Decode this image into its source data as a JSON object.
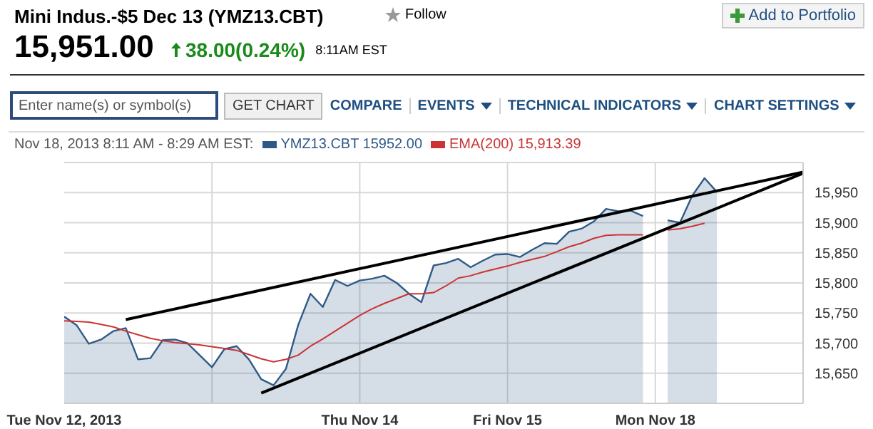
{
  "chart_data": {
    "type": "line",
    "title": "Mini Indus.-$5 Dec 13 (YMZ13.CBT)",
    "subtitle": "Nov 18, 2013 8:11 AM - 8:29 AM EST:",
    "annotations": [
      "15,951.00",
      "38.00(0.24%)",
      "8:11AM EST",
      "Follow",
      "Add to Portfolio",
      "Enter name(s) or symbol(s)",
      "GET CHART",
      "COMPARE",
      "EVENTS",
      "TECHNICAL INDICATORS",
      "CHART SETTINGS"
    ],
    "categories": [
      "Tue Nov 12, 2013",
      null,
      null,
      null,
      null,
      null,
      null,
      null,
      null,
      null,
      null,
      null,
      null,
      null,
      null,
      null,
      null,
      null,
      null,
      null,
      null,
      null,
      null,
      null,
      "Thu Nov 14",
      null,
      null,
      null,
      null,
      null,
      null,
      null,
      null,
      null,
      null,
      null,
      "Fri Nov 15",
      null,
      null,
      null,
      null,
      null,
      null,
      null,
      null,
      null,
      null,
      null,
      "Mon Nov 18",
      null,
      null,
      null,
      null,
      null,
      null,
      null,
      null,
      null,
      null,
      null,
      null
    ],
    "ylim": [
      15600,
      16000
    ],
    "yticks": [
      {
        "value": 15650,
        "label": "15,650"
      },
      {
        "value": 15700,
        "label": "15,700"
      },
      {
        "value": 15750,
        "label": "15,750"
      },
      {
        "value": 15800,
        "label": "15,800"
      },
      {
        "value": 15850,
        "label": "15,850"
      },
      {
        "value": 15900,
        "label": "15,900"
      },
      {
        "value": 15950,
        "label": "15,950"
      }
    ],
    "grid": true,
    "legend": "top left",
    "series": [
      {
        "name": "YMZ13.CBT 15952.00",
        "type": "area",
        "color": "#2f5a88",
        "values": [
          15744,
          15730,
          15699,
          15706,
          15720,
          15725,
          15673,
          15675,
          15705,
          15706,
          15700,
          15680,
          15660,
          15690,
          15695,
          15673,
          15640,
          15630,
          15657,
          15730,
          15782,
          15760,
          15805,
          15795,
          15804,
          15807,
          15812,
          15800,
          15782,
          15768,
          15829,
          15833,
          15840,
          15826,
          15837,
          15847,
          15848,
          15843,
          15855,
          15866,
          15865,
          15885,
          15890,
          15902,
          15923,
          15919,
          15920,
          15911,
          null,
          15904,
          15900,
          15945,
          15974,
          15951,
          null,
          null,
          null,
          null,
          null,
          null,
          null
        ]
      },
      {
        "name": "EMA(200) 15,913.39",
        "color": "#cc3333",
        "values": [
          15737,
          15736,
          15735,
          15731,
          15727,
          15720,
          15714,
          15708,
          15704,
          15701,
          15699,
          15697,
          15694,
          15691,
          15688,
          15681,
          15674,
          15669,
          15673,
          15680,
          15695,
          15707,
          15720,
          15733,
          15746,
          15757,
          15766,
          15774,
          15782,
          15782,
          15784,
          15795,
          15808,
          15812,
          15818,
          15823,
          15828,
          15834,
          15839,
          15844,
          15852,
          15860,
          15866,
          15874,
          15879,
          15880,
          15880,
          15880,
          null,
          15888,
          15890,
          15894,
          15899,
          null,
          null,
          null,
          null,
          null,
          null,
          null,
          null
        ]
      },
      {
        "color": "#000000",
        "values": [
          null,
          null,
          null,
          null,
          null,
          15739,
          null,
          null,
          null,
          null,
          null,
          null,
          null,
          null,
          null,
          null,
          null,
          null,
          null,
          null,
          null,
          null,
          null,
          null,
          null,
          null,
          null,
          null,
          null,
          null,
          null,
          null,
          null,
          null,
          null,
          null,
          null,
          null,
          null,
          null,
          null,
          null,
          null,
          null,
          null,
          null,
          null,
          null,
          null,
          null,
          null,
          null,
          null,
          null,
          null,
          null,
          null,
          null,
          null,
          null,
          15984
        ]
      },
      {
        "color": "#000000",
        "values": [
          null,
          null,
          null,
          null,
          null,
          null,
          null,
          null,
          null,
          null,
          null,
          null,
          null,
          null,
          null,
          null,
          15617,
          null,
          null,
          null,
          null,
          null,
          null,
          null,
          null,
          null,
          null,
          null,
          null,
          null,
          null,
          null,
          null,
          null,
          null,
          null,
          null,
          null,
          null,
          null,
          null,
          null,
          null,
          null,
          null,
          null,
          null,
          null,
          null,
          null,
          null,
          null,
          null,
          null,
          null,
          null,
          null,
          null,
          null,
          null,
          15982
        ]
      }
    ]
  }
}
